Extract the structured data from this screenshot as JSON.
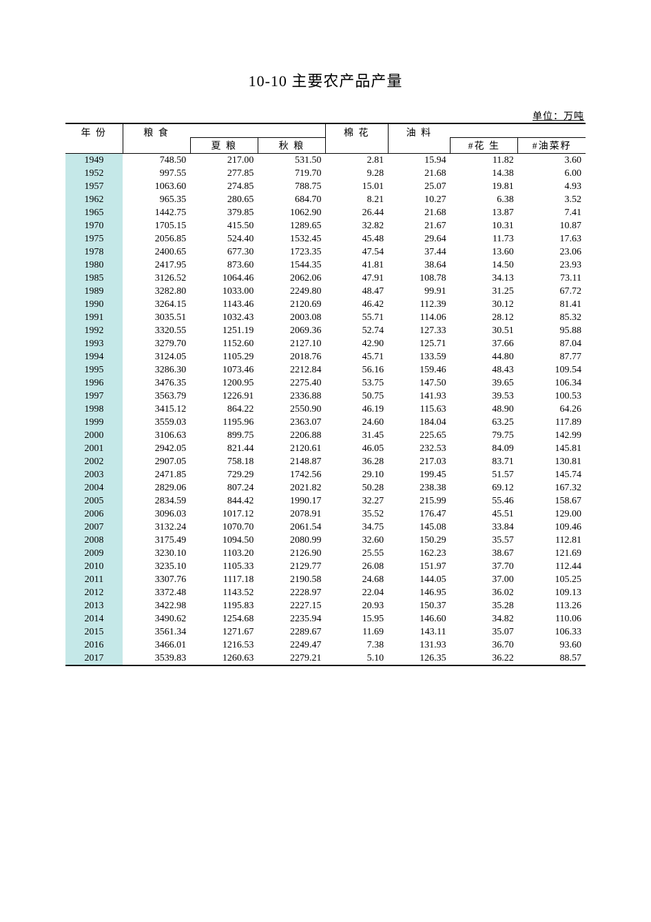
{
  "title": "10-10 主要农产品产量",
  "unit": "单位：万吨",
  "table": {
    "type": "table",
    "background_color": "#ffffff",
    "year_bg_color": "#c5e8e8",
    "border_color": "#000000",
    "font_family": "SimSun",
    "font_size_pt": 10.5,
    "title_font_size_pt": 16,
    "columns_top": [
      {
        "key": "year",
        "label": "年 份",
        "align": "center"
      },
      {
        "key": "grain",
        "label": "粮 食",
        "align": "right",
        "subs": [
          "summer",
          "autumn"
        ]
      },
      {
        "key": "cotton",
        "label": "棉 花",
        "align": "right"
      },
      {
        "key": "oil",
        "label": "油 料",
        "align": "right",
        "subs": [
          "peanut",
          "rapeseed"
        ]
      }
    ],
    "sub_columns": {
      "summer": {
        "label": "夏 粮"
      },
      "autumn": {
        "label": "秋 粮"
      },
      "peanut": {
        "label": "#花 生"
      },
      "rapeseed": {
        "label": "#油菜籽"
      }
    },
    "col_widths_pct": [
      11,
      13,
      13,
      13,
      12,
      12,
      13,
      13
    ],
    "rows": [
      {
        "year": 1949,
        "grain": 748.5,
        "summer": 217.0,
        "autumn": 531.5,
        "cotton": 2.81,
        "oil": 15.94,
        "peanut": 11.82,
        "rapeseed": 3.6
      },
      {
        "year": 1952,
        "grain": 997.55,
        "summer": 277.85,
        "autumn": 719.7,
        "cotton": 9.28,
        "oil": 21.68,
        "peanut": 14.38,
        "rapeseed": 6.0
      },
      {
        "year": 1957,
        "grain": 1063.6,
        "summer": 274.85,
        "autumn": 788.75,
        "cotton": 15.01,
        "oil": 25.07,
        "peanut": 19.81,
        "rapeseed": 4.93
      },
      {
        "year": 1962,
        "grain": 965.35,
        "summer": 280.65,
        "autumn": 684.7,
        "cotton": 8.21,
        "oil": 10.27,
        "peanut": 6.38,
        "rapeseed": 3.52
      },
      {
        "year": 1965,
        "grain": 1442.75,
        "summer": 379.85,
        "autumn": 1062.9,
        "cotton": 26.44,
        "oil": 21.68,
        "peanut": 13.87,
        "rapeseed": 7.41
      },
      {
        "year": 1970,
        "grain": 1705.15,
        "summer": 415.5,
        "autumn": 1289.65,
        "cotton": 32.82,
        "oil": 21.67,
        "peanut": 10.31,
        "rapeseed": 10.87
      },
      {
        "year": 1975,
        "grain": 2056.85,
        "summer": 524.4,
        "autumn": 1532.45,
        "cotton": 45.48,
        "oil": 29.64,
        "peanut": 11.73,
        "rapeseed": 17.63
      },
      {
        "year": 1978,
        "grain": 2400.65,
        "summer": 677.3,
        "autumn": 1723.35,
        "cotton": 47.54,
        "oil": 37.44,
        "peanut": 13.6,
        "rapeseed": 23.06
      },
      {
        "year": 1980,
        "grain": 2417.95,
        "summer": 873.6,
        "autumn": 1544.35,
        "cotton": 41.81,
        "oil": 38.64,
        "peanut": 14.5,
        "rapeseed": 23.93
      },
      {
        "year": 1985,
        "grain": 3126.52,
        "summer": 1064.46,
        "autumn": 2062.06,
        "cotton": 47.91,
        "oil": 108.78,
        "peanut": 34.13,
        "rapeseed": 73.11
      },
      {
        "year": 1989,
        "grain": 3282.8,
        "summer": 1033.0,
        "autumn": 2249.8,
        "cotton": 48.47,
        "oil": 99.91,
        "peanut": 31.25,
        "rapeseed": 67.72
      },
      {
        "year": 1990,
        "grain": 3264.15,
        "summer": 1143.46,
        "autumn": 2120.69,
        "cotton": 46.42,
        "oil": 112.39,
        "peanut": 30.12,
        "rapeseed": 81.41
      },
      {
        "year": 1991,
        "grain": 3035.51,
        "summer": 1032.43,
        "autumn": 2003.08,
        "cotton": 55.71,
        "oil": 114.06,
        "peanut": 28.12,
        "rapeseed": 85.32
      },
      {
        "year": 1992,
        "grain": 3320.55,
        "summer": 1251.19,
        "autumn": 2069.36,
        "cotton": 52.74,
        "oil": 127.33,
        "peanut": 30.51,
        "rapeseed": 95.88
      },
      {
        "year": 1993,
        "grain": 3279.7,
        "summer": 1152.6,
        "autumn": 2127.1,
        "cotton": 42.9,
        "oil": 125.71,
        "peanut": 37.66,
        "rapeseed": 87.04
      },
      {
        "year": 1994,
        "grain": 3124.05,
        "summer": 1105.29,
        "autumn": 2018.76,
        "cotton": 45.71,
        "oil": 133.59,
        "peanut": 44.8,
        "rapeseed": 87.77
      },
      {
        "year": 1995,
        "grain": 3286.3,
        "summer": 1073.46,
        "autumn": 2212.84,
        "cotton": 56.16,
        "oil": 159.46,
        "peanut": 48.43,
        "rapeseed": 109.54
      },
      {
        "year": 1996,
        "grain": 3476.35,
        "summer": 1200.95,
        "autumn": 2275.4,
        "cotton": 53.75,
        "oil": 147.5,
        "peanut": 39.65,
        "rapeseed": 106.34
      },
      {
        "year": 1997,
        "grain": 3563.79,
        "summer": 1226.91,
        "autumn": 2336.88,
        "cotton": 50.75,
        "oil": 141.93,
        "peanut": 39.53,
        "rapeseed": 100.53
      },
      {
        "year": 1998,
        "grain": 3415.12,
        "summer": 864.22,
        "autumn": 2550.9,
        "cotton": 46.19,
        "oil": 115.63,
        "peanut": 48.9,
        "rapeseed": 64.26
      },
      {
        "year": 1999,
        "grain": 3559.03,
        "summer": 1195.96,
        "autumn": 2363.07,
        "cotton": 24.6,
        "oil": 184.04,
        "peanut": 63.25,
        "rapeseed": 117.89
      },
      {
        "year": 2000,
        "grain": 3106.63,
        "summer": 899.75,
        "autumn": 2206.88,
        "cotton": 31.45,
        "oil": 225.65,
        "peanut": 79.75,
        "rapeseed": 142.99
      },
      {
        "year": 2001,
        "grain": 2942.05,
        "summer": 821.44,
        "autumn": 2120.61,
        "cotton": 46.05,
        "oil": 232.53,
        "peanut": 84.09,
        "rapeseed": 145.81
      },
      {
        "year": 2002,
        "grain": 2907.05,
        "summer": 758.18,
        "autumn": 2148.87,
        "cotton": 36.28,
        "oil": 217.03,
        "peanut": 83.71,
        "rapeseed": 130.81
      },
      {
        "year": 2003,
        "grain": 2471.85,
        "summer": 729.29,
        "autumn": 1742.56,
        "cotton": 29.1,
        "oil": 199.45,
        "peanut": 51.57,
        "rapeseed": 145.74
      },
      {
        "year": 2004,
        "grain": 2829.06,
        "summer": 807.24,
        "autumn": 2021.82,
        "cotton": 50.28,
        "oil": 238.38,
        "peanut": 69.12,
        "rapeseed": 167.32
      },
      {
        "year": 2005,
        "grain": 2834.59,
        "summer": 844.42,
        "autumn": 1990.17,
        "cotton": 32.27,
        "oil": 215.99,
        "peanut": 55.46,
        "rapeseed": 158.67
      },
      {
        "year": 2006,
        "grain": 3096.03,
        "summer": 1017.12,
        "autumn": 2078.91,
        "cotton": 35.52,
        "oil": 176.47,
        "peanut": 45.51,
        "rapeseed": 129.0
      },
      {
        "year": 2007,
        "grain": 3132.24,
        "summer": 1070.7,
        "autumn": 2061.54,
        "cotton": 34.75,
        "oil": 145.08,
        "peanut": 33.84,
        "rapeseed": 109.46
      },
      {
        "year": 2008,
        "grain": 3175.49,
        "summer": 1094.5,
        "autumn": 2080.99,
        "cotton": 32.6,
        "oil": 150.29,
        "peanut": 35.57,
        "rapeseed": 112.81
      },
      {
        "year": 2009,
        "grain": 3230.1,
        "summer": 1103.2,
        "autumn": 2126.9,
        "cotton": 25.55,
        "oil": 162.23,
        "peanut": 38.67,
        "rapeseed": 121.69
      },
      {
        "year": 2010,
        "grain": 3235.1,
        "summer": 1105.33,
        "autumn": 2129.77,
        "cotton": 26.08,
        "oil": 151.97,
        "peanut": 37.7,
        "rapeseed": 112.44
      },
      {
        "year": 2011,
        "grain": 3307.76,
        "summer": 1117.18,
        "autumn": 2190.58,
        "cotton": 24.68,
        "oil": 144.05,
        "peanut": 37.0,
        "rapeseed": 105.25
      },
      {
        "year": 2012,
        "grain": 3372.48,
        "summer": 1143.52,
        "autumn": 2228.97,
        "cotton": 22.04,
        "oil": 146.95,
        "peanut": 36.02,
        "rapeseed": 109.13
      },
      {
        "year": 2013,
        "grain": 3422.98,
        "summer": 1195.83,
        "autumn": 2227.15,
        "cotton": 20.93,
        "oil": 150.37,
        "peanut": 35.28,
        "rapeseed": 113.26
      },
      {
        "year": 2014,
        "grain": 3490.62,
        "summer": 1254.68,
        "autumn": 2235.94,
        "cotton": 15.95,
        "oil": 146.6,
        "peanut": 34.82,
        "rapeseed": 110.06
      },
      {
        "year": 2015,
        "grain": 3561.34,
        "summer": 1271.67,
        "autumn": 2289.67,
        "cotton": 11.69,
        "oil": 143.11,
        "peanut": 35.07,
        "rapeseed": 106.33
      },
      {
        "year": 2016,
        "grain": 3466.01,
        "summer": 1216.53,
        "autumn": 2249.47,
        "cotton": 7.38,
        "oil": 131.93,
        "peanut": 36.7,
        "rapeseed": 93.6
      },
      {
        "year": 2017,
        "grain": 3539.83,
        "summer": 1260.63,
        "autumn": 2279.21,
        "cotton": 5.1,
        "oil": 126.35,
        "peanut": 36.22,
        "rapeseed": 88.57
      }
    ]
  }
}
